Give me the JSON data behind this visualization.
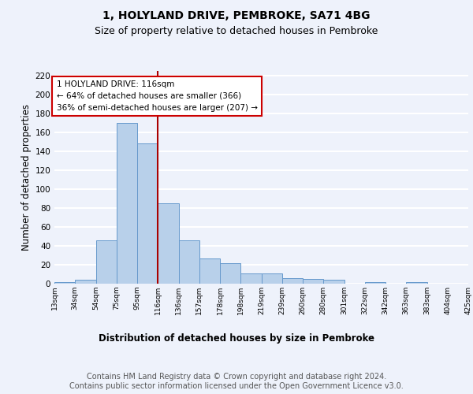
{
  "title1": "1, HOLYLAND DRIVE, PEMBROKE, SA71 4BG",
  "title2": "Size of property relative to detached houses in Pembroke",
  "xlabel": "Distribution of detached houses by size in Pembroke",
  "ylabel": "Number of detached properties",
  "footnote": "Contains HM Land Registry data © Crown copyright and database right 2024.\nContains public sector information licensed under the Open Government Licence v3.0.",
  "bin_labels": [
    "13sqm",
    "34sqm",
    "54sqm",
    "75sqm",
    "95sqm",
    "116sqm",
    "136sqm",
    "157sqm",
    "178sqm",
    "198sqm",
    "219sqm",
    "239sqm",
    "260sqm",
    "280sqm",
    "301sqm",
    "322sqm",
    "342sqm",
    "363sqm",
    "383sqm",
    "404sqm",
    "425sqm"
  ],
  "bar_values": [
    2,
    4,
    46,
    170,
    148,
    85,
    46,
    27,
    22,
    11,
    11,
    6,
    5,
    4,
    0,
    2,
    0,
    2,
    0,
    0
  ],
  "bar_color": "#b8d0ea",
  "bar_edge_color": "#6699cc",
  "highlight_bin": 5,
  "vline_color": "#aa0000",
  "annotation_text": "1 HOLYLAND DRIVE: 116sqm\n← 64% of detached houses are smaller (366)\n36% of semi-detached houses are larger (207) →",
  "annotation_box_color": "#ffffff",
  "annotation_box_edge": "#cc0000",
  "ylim": [
    0,
    225
  ],
  "yticks": [
    0,
    20,
    40,
    60,
    80,
    100,
    120,
    140,
    160,
    180,
    200,
    220
  ],
  "background_color": "#eef2fb",
  "grid_color": "#ffffff",
  "title1_fontsize": 10,
  "title2_fontsize": 9,
  "xlabel_fontsize": 8.5,
  "ylabel_fontsize": 8.5,
  "footnote_fontsize": 7
}
